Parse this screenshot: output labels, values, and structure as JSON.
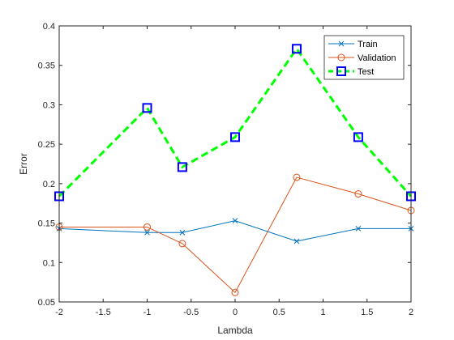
{
  "chart_data": {
    "type": "line",
    "title": "",
    "xlabel": "Lambda",
    "ylabel": "Error",
    "xlim": [
      -2,
      2
    ],
    "ylim": [
      0.05,
      0.4
    ],
    "xticks": [
      -2,
      -1.5,
      -1,
      -0.5,
      0,
      0.5,
      1,
      1.5,
      2
    ],
    "yticks": [
      0.05,
      0.1,
      0.15,
      0.2,
      0.25,
      0.3,
      0.35,
      0.4
    ],
    "xtick_labels": [
      "-2",
      "-1.5",
      "-1",
      "-0.5",
      "0",
      "0.5",
      "1",
      "1.5",
      "2"
    ],
    "ytick_labels": [
      "0.05",
      "0.1",
      "0.15",
      "0.2",
      "0.25",
      "0.3",
      "0.35",
      "0.4"
    ],
    "grid": false,
    "legend_position": "top-right",
    "x": [
      -2,
      -1,
      -0.6,
      0,
      0.7,
      1.4,
      2
    ],
    "series": [
      {
        "name": "Train",
        "values": [
          0.143,
          0.138,
          0.138,
          0.153,
          0.127,
          0.143,
          0.143
        ],
        "color": "#0072BD",
        "marker": "x",
        "line_style": "solid"
      },
      {
        "name": "Validation",
        "values": [
          0.145,
          0.145,
          0.124,
          0.062,
          0.208,
          0.187,
          0.166
        ],
        "color": "#D95319",
        "marker": "circle",
        "line_style": "solid"
      },
      {
        "name": "Test",
        "values": [
          0.184,
          0.296,
          0.221,
          0.259,
          0.371,
          0.259,
          0.184
        ],
        "color": "#00FF00",
        "marker_color": "#0000FF",
        "marker": "square",
        "line_style": "dashed"
      }
    ]
  }
}
